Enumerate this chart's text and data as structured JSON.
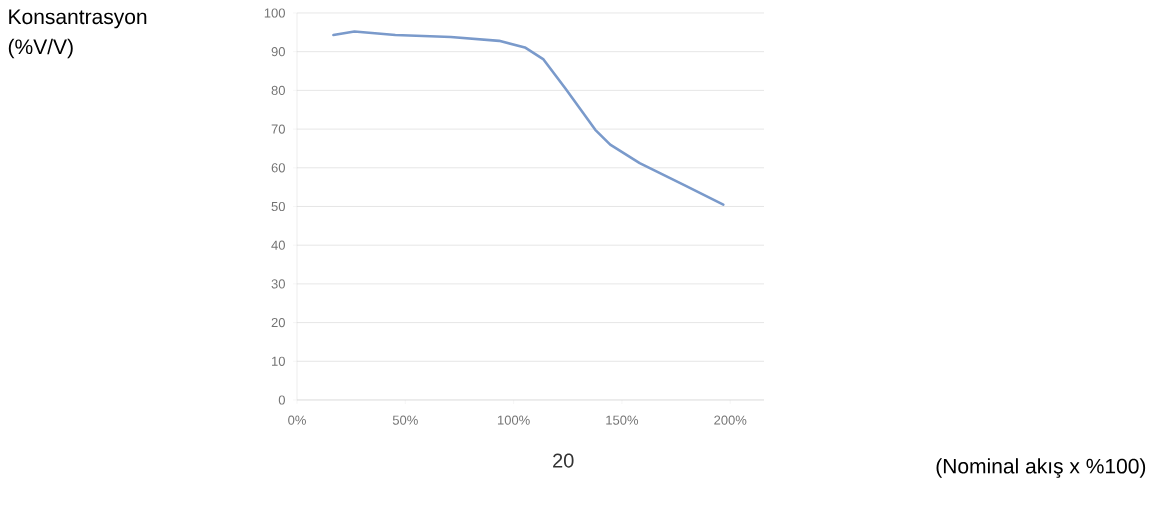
{
  "chart_data": {
    "type": "line",
    "annotations": [
      "20",
      "Konsantrasyon (%V/V)",
      "(Nominal akış x %100)"
    ],
    "x": [
      16.8,
      26.5,
      45.4,
      71,
      93.3,
      105.2,
      113.8,
      124,
      137.7,
      144.6,
      158.2,
      178.8,
      196.8
    ],
    "series": [
      {
        "color": "#7a9acb",
        "values": [
          94.3,
          95.2,
          94.3,
          93.8,
          92.8,
          91.1,
          88.0,
          80.4,
          69.8,
          66.0,
          61.2,
          55.5,
          50.5
        ]
      }
    ],
    "xlim": [
      0,
      215.6
    ],
    "ylim": [
      0,
      100
    ],
    "xticks": [
      {
        "value": 0,
        "label": "0%"
      },
      {
        "value": 50,
        "label": "50%"
      },
      {
        "value": 100,
        "label": "100%"
      },
      {
        "value": 150,
        "label": "150%"
      },
      {
        "value": 200,
        "label": "200%"
      }
    ],
    "yticks": [
      0,
      10,
      20,
      30,
      40,
      50,
      60,
      70,
      80,
      90,
      100
    ],
    "grid": "y",
    "marker": "none",
    "line_style": "solid"
  }
}
